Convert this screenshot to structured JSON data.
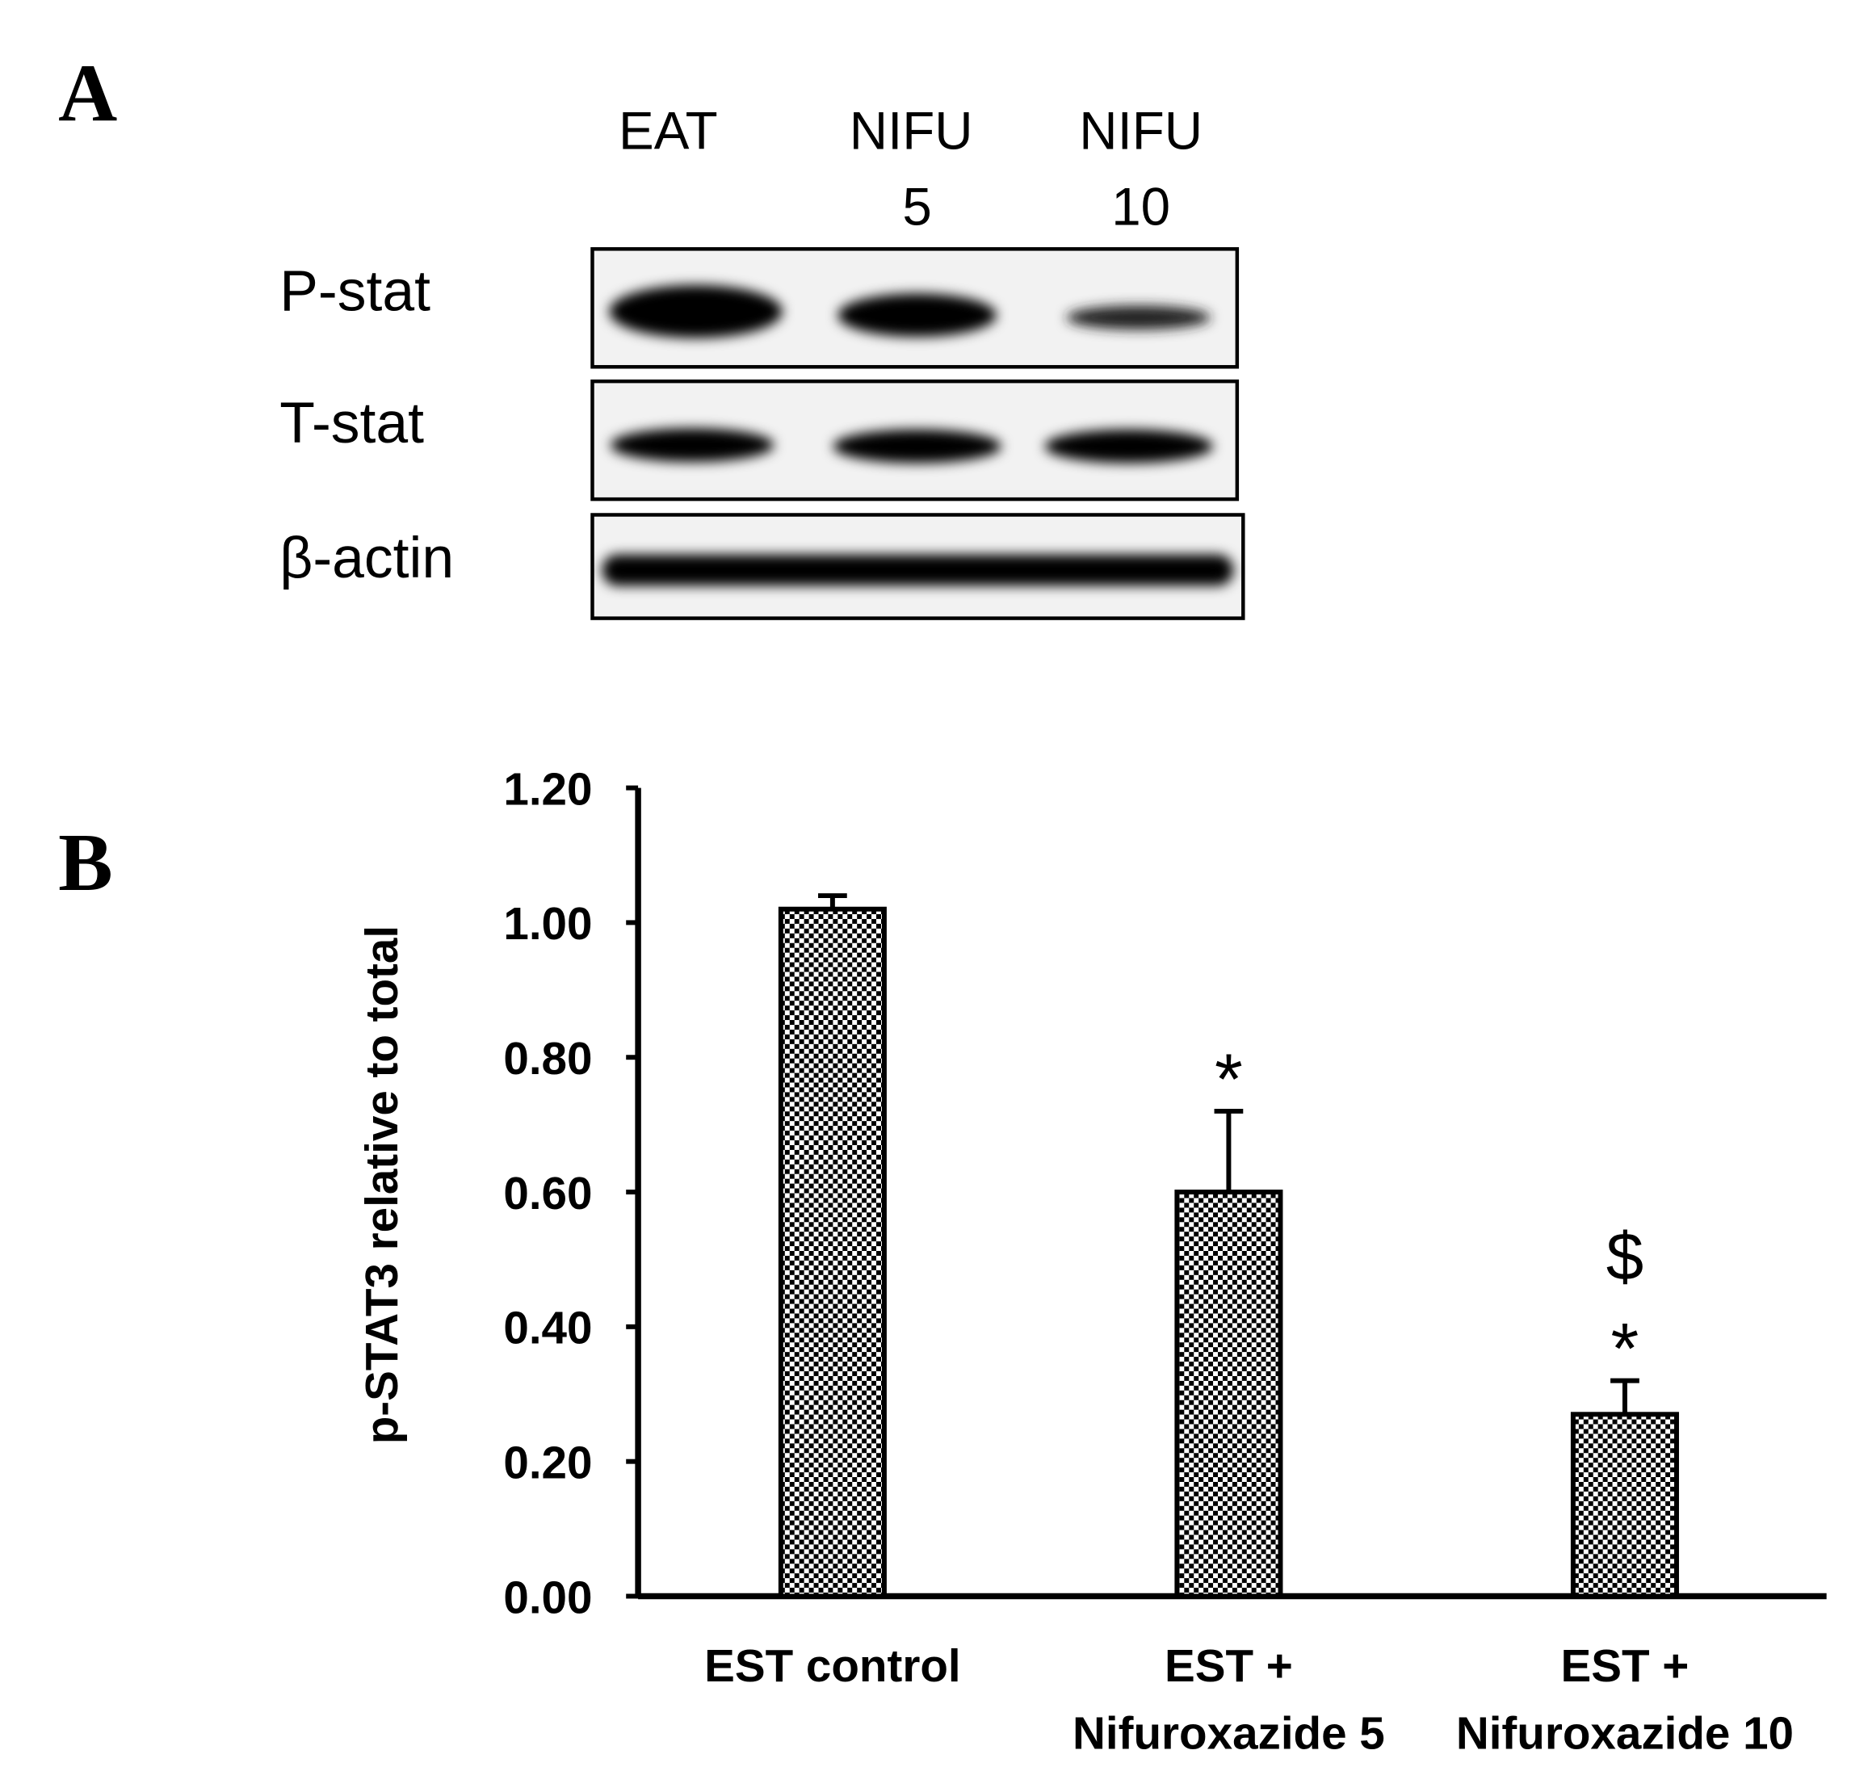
{
  "panel_a": {
    "label": "A",
    "lanes": [
      [
        "EAT"
      ],
      [
        "NIFU",
        "5"
      ],
      [
        "NIFU",
        "10"
      ]
    ],
    "rows": [
      "P-stat",
      "T-stat",
      "β-actin"
    ]
  },
  "panel_b_label": "B",
  "chart_data": {
    "type": "bar",
    "y_label": "p-STAT3 relative to total",
    "categories": [
      [
        "EST control"
      ],
      [
        "EST +",
        "Nifuroxazide 5"
      ],
      [
        "EST +",
        "Nifuroxazide 10"
      ]
    ],
    "values": [
      1.02,
      0.6,
      0.27
    ],
    "errors": [
      0.02,
      0.12,
      0.05
    ],
    "bar_annotations": [
      [],
      [
        "*"
      ],
      [
        "$",
        "*"
      ]
    ],
    "color": "#000000",
    "ylim": [
      0,
      1.2
    ],
    "yticks": [
      {
        "value": 0,
        "label": "0.00"
      },
      {
        "value": 0.2,
        "label": "0.20"
      },
      {
        "value": 0.4,
        "label": "0.40"
      },
      {
        "value": 0.6,
        "label": "0.60"
      },
      {
        "value": 0.8,
        "label": "0.80"
      },
      {
        "value": 1.0,
        "label": "1.00"
      },
      {
        "value": 1.2,
        "label": "1.20"
      }
    ]
  }
}
